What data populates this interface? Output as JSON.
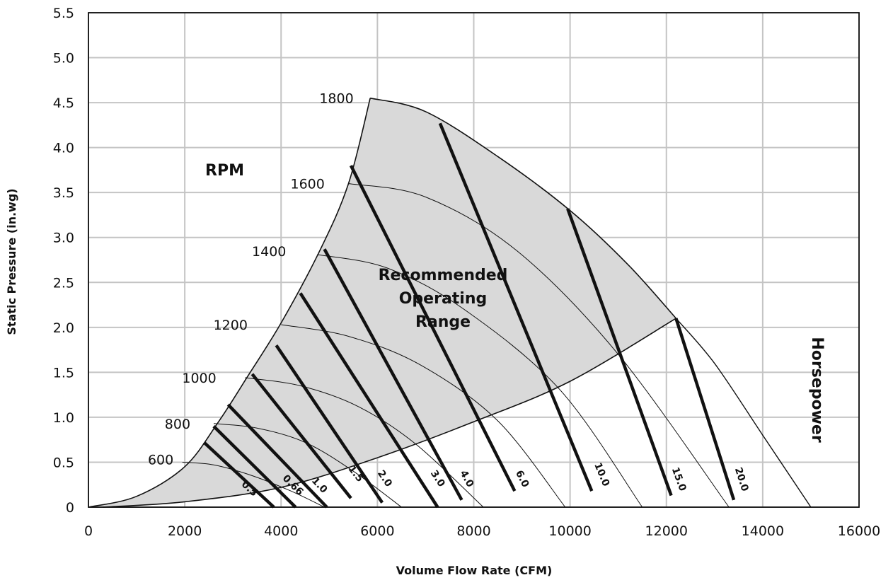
{
  "chart_data": {
    "type": "line",
    "xlabel": "Volume Flow Rate (CFM)",
    "ylabel": "Static Pressure (in.wg)",
    "xlim": [
      0,
      16000
    ],
    "ylim": [
      0,
      5.5
    ],
    "x_ticks": [
      "0",
      "2000",
      "4000",
      "6000",
      "8000",
      "10000",
      "12000",
      "14000",
      "16000"
    ],
    "y_ticks": [
      "0",
      "0.5",
      "1.0",
      "1.5",
      "2.0",
      "2.5",
      "3.0",
      "3.5",
      "4.0",
      "4.5",
      "5.0",
      "5.5"
    ],
    "grid": true,
    "annotations": {
      "rpm_heading": "RPM",
      "horsepower_heading": "Horsepower",
      "region_label": [
        "Recommended",
        "Operating",
        "Range"
      ]
    },
    "region": {
      "name": "Recommended Operating Range",
      "fill": "#d9d9d9",
      "upper_boundary": [
        [
          0,
          0
        ],
        [
          1000,
          0.12
        ],
        [
          2000,
          0.45
        ],
        [
          2700,
          0.95
        ],
        [
          3300,
          1.45
        ],
        [
          4000,
          2.05
        ],
        [
          4800,
          2.85
        ],
        [
          5400,
          3.6
        ],
        [
          5850,
          4.55
        ]
      ],
      "outer_boundary": [
        [
          5850,
          4.55
        ],
        [
          7000,
          4.4
        ],
        [
          8500,
          3.9
        ],
        [
          10000,
          3.3
        ],
        [
          11200,
          2.7
        ],
        [
          12200,
          2.1
        ]
      ],
      "lower_boundary": [
        [
          300,
          0
        ],
        [
          2000,
          0.06
        ],
        [
          4000,
          0.22
        ],
        [
          6000,
          0.55
        ],
        [
          8000,
          0.95
        ],
        [
          10000,
          1.4
        ],
        [
          12200,
          2.1
        ]
      ],
      "limit_curve": [
        [
          12200,
          2.1
        ],
        [
          13000,
          1.6
        ],
        [
          14000,
          0.8
        ],
        [
          15000,
          0
        ]
      ]
    },
    "rpm_series": [
      {
        "name": "600",
        "label_at": [
          1500,
          0.53
        ],
        "points": [
          [
            1950,
            0.5
          ],
          [
            2600,
            0.47
          ],
          [
            3400,
            0.35
          ],
          [
            4200,
            0.18
          ],
          [
            4900,
            0
          ]
        ]
      },
      {
        "name": "800",
        "label_at": [
          1850,
          0.93
        ],
        "points": [
          [
            2600,
            0.93
          ],
          [
            3500,
            0.88
          ],
          [
            4500,
            0.72
          ],
          [
            5500,
            0.4
          ],
          [
            6500,
            0
          ]
        ]
      },
      {
        "name": "1000",
        "label_at": [
          2300,
          1.44
        ],
        "points": [
          [
            3250,
            1.44
          ],
          [
            4400,
            1.35
          ],
          [
            5600,
            1.12
          ],
          [
            6800,
            0.7
          ],
          [
            8200,
            0
          ]
        ]
      },
      {
        "name": "1200",
        "label_at": [
          2950,
          2.03
        ],
        "points": [
          [
            4000,
            2.03
          ],
          [
            5400,
            1.9
          ],
          [
            6900,
            1.58
          ],
          [
            8500,
            0.96
          ],
          [
            9900,
            0
          ]
        ]
      },
      {
        "name": "1400",
        "label_at": [
          3750,
          2.85
        ],
        "points": [
          [
            4750,
            2.81
          ],
          [
            6200,
            2.66
          ],
          [
            7800,
            2.2
          ],
          [
            9800,
            1.3
          ],
          [
            11500,
            0
          ]
        ]
      },
      {
        "name": "1600",
        "label_at": [
          4550,
          3.6
        ],
        "points": [
          [
            5400,
            3.6
          ],
          [
            7000,
            3.45
          ],
          [
            8900,
            2.85
          ],
          [
            11000,
            1.7
          ],
          [
            13300,
            0
          ]
        ]
      }
    ],
    "rpm_top_label": {
      "name": "1800",
      "label_at": [
        5150,
        4.55
      ]
    },
    "hp_series": [
      {
        "name": "0.5",
        "start": [
          2400,
          0.72
        ],
        "end": [
          3850,
          0
        ],
        "label_at": [
          3300,
          0.18
        ]
      },
      {
        "name": "0.66",
        "start": [
          2600,
          0.9
        ],
        "end": [
          4300,
          0
        ],
        "label_at": [
          4200,
          0.22
        ]
      },
      {
        "name": "1.0",
        "start": [
          2900,
          1.14
        ],
        "end": [
          4950,
          0
        ],
        "label_at": [
          4750,
          0.22
        ]
      },
      {
        "name": "1.5",
        "start": [
          3400,
          1.48
        ],
        "end": [
          5450,
          0.1
        ],
        "label_at": [
          5500,
          0.35
        ]
      },
      {
        "name": "2.0",
        "start": [
          3900,
          1.8
        ],
        "end": [
          6100,
          0.05
        ],
        "label_at": [
          6100,
          0.3
        ]
      },
      {
        "name": "3.0",
        "start": [
          4400,
          2.38
        ],
        "end": [
          7250,
          0
        ],
        "label_at": [
          7200,
          0.3
        ]
      },
      {
        "name": "4.0",
        "start": [
          4900,
          2.87
        ],
        "end": [
          7750,
          0.08
        ],
        "label_at": [
          7800,
          0.3
        ]
      },
      {
        "name": "6.0",
        "start": [
          5450,
          3.8
        ],
        "end": [
          8850,
          0.18
        ],
        "label_at": [
          8950,
          0.3
        ]
      },
      {
        "name": "10.0",
        "start": [
          7300,
          4.27
        ],
        "end": [
          10450,
          0.18
        ],
        "label_at": [
          10600,
          0.35
        ]
      },
      {
        "name": "15.0",
        "start": [
          9950,
          3.32
        ],
        "end": [
          12100,
          0.13
        ],
        "label_at": [
          12200,
          0.3
        ]
      },
      {
        "name": "20.0",
        "start": [
          12200,
          2.1
        ],
        "end": [
          13400,
          0.08
        ],
        "label_at": [
          13500,
          0.3
        ]
      }
    ]
  }
}
